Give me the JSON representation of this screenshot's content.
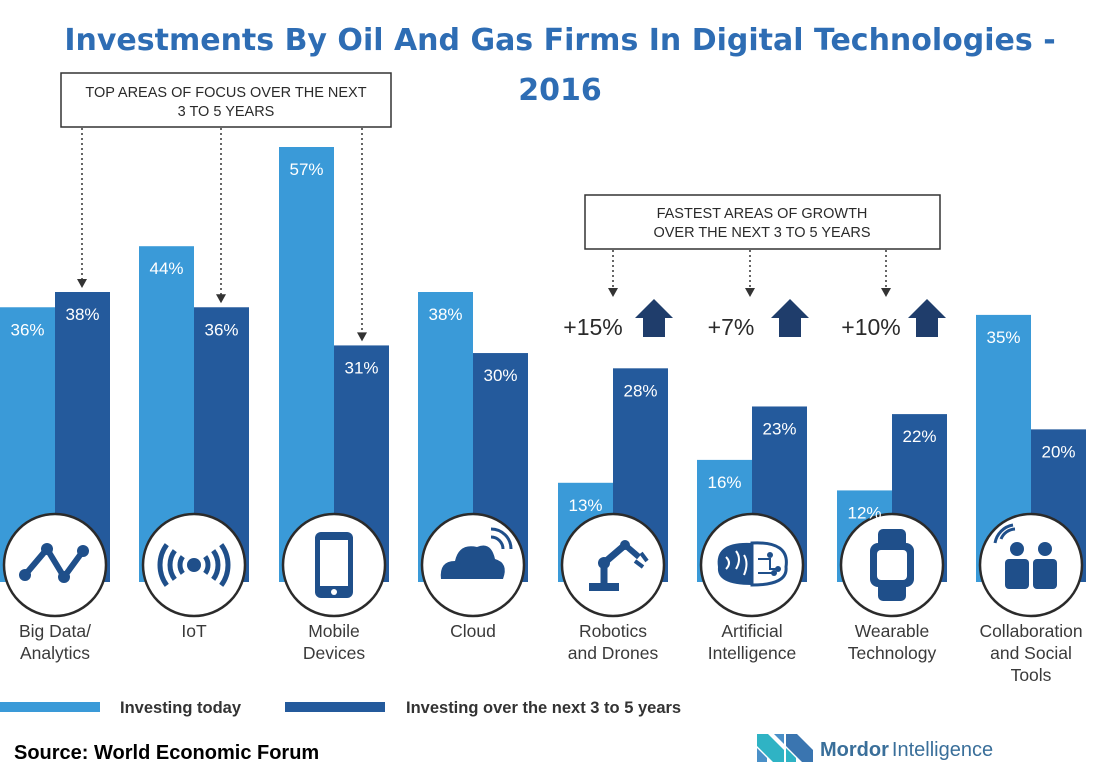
{
  "title": {
    "line1": "Investments By Oil And Gas Firms In Digital Technologies -",
    "line2": "2016"
  },
  "annotations": {
    "top_focus": {
      "line1": "TOP AREAS OF FOCUS OVER THE NEXT",
      "line2": "3 TO 5 YEARS"
    },
    "fastest_growth": {
      "line1": "FASTEST AREAS OF GROWTH",
      "line2": "OVER THE NEXT 3 TO 5 YEARS"
    }
  },
  "colors": {
    "today": "#3a9ad8",
    "future": "#245a9c",
    "title": "#2e6db4",
    "arrow": "#1f3d6b"
  },
  "chart_data": {
    "type": "bar",
    "title": "Investments By Oil And Gas Firms In Digital Technologies - 2016",
    "unit": "%",
    "ylim": [
      0,
      60
    ],
    "categories": [
      {
        "lines": [
          "Big Data/",
          "Analytics"
        ],
        "icon": "analytics-line-icon"
      },
      {
        "lines": [
          "IoT"
        ],
        "icon": "iot-signal-icon"
      },
      {
        "lines": [
          "Mobile",
          "Devices"
        ],
        "icon": "mobile-phone-icon"
      },
      {
        "lines": [
          "Cloud"
        ],
        "icon": "cloud-icon"
      },
      {
        "lines": [
          "Robotics",
          "and Drones"
        ],
        "icon": "robot-arm-icon"
      },
      {
        "lines": [
          "Artificial",
          "Intelligence"
        ],
        "icon": "brain-circuit-icon"
      },
      {
        "lines": [
          "Wearable",
          "Technology"
        ],
        "icon": "smartwatch-icon"
      },
      {
        "lines": [
          "Collaboration",
          "and Social",
          "Tools"
        ],
        "icon": "people-icon"
      }
    ],
    "series": [
      {
        "name": "Investing today",
        "values": [
          36,
          44,
          57,
          38,
          13,
          16,
          12,
          35
        ],
        "labels": [
          "36%",
          "44%",
          "57%",
          "38%",
          "13%",
          "16%",
          "12%",
          "35%"
        ]
      },
      {
        "name": "Investing over the next 3 to 5 years",
        "values": [
          38,
          36,
          31,
          30,
          28,
          23,
          22,
          20
        ],
        "labels": [
          "38%",
          "36%",
          "31%",
          "30%",
          "28%",
          "23%",
          "22%",
          "20%"
        ]
      }
    ],
    "growth": [
      {
        "category_index": 4,
        "label": "+15%"
      },
      {
        "category_index": 5,
        "label": "+7%"
      },
      {
        "category_index": 6,
        "label": "+10%"
      }
    ],
    "top_focus_indices": [
      0,
      1,
      2
    ]
  },
  "legend": {
    "today": "Investing today",
    "future": "Investing over the next 3 to 5 years"
  },
  "source": "Source: World Economic Forum",
  "brand": {
    "part1": "Mordor",
    "part2": "Intelligence"
  }
}
